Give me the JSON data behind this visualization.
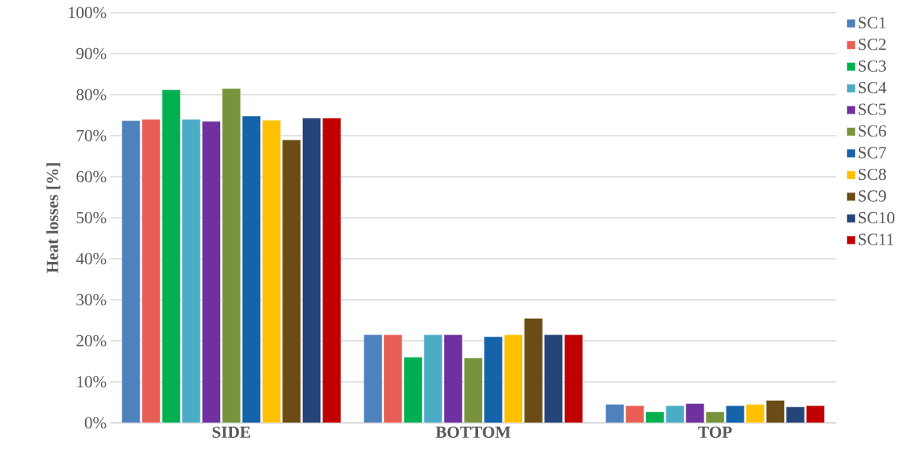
{
  "chart_data": {
    "type": "bar",
    "ylabel": "Heat losses [%]",
    "categories": [
      "SIDE",
      "BOTTOM",
      "TOP"
    ],
    "series": [
      {
        "name": "SC1",
        "color": "#4f81bd",
        "values": [
          73.7,
          21.5,
          4.5
        ]
      },
      {
        "name": "SC2",
        "color": "#e95e54",
        "values": [
          74.0,
          21.5,
          4.2
        ]
      },
      {
        "name": "SC3",
        "color": "#00b050",
        "values": [
          81.2,
          16.0,
          2.7
        ]
      },
      {
        "name": "SC4",
        "color": "#4bacc6",
        "values": [
          74.0,
          21.5,
          4.2
        ]
      },
      {
        "name": "SC5",
        "color": "#7030a0",
        "values": [
          73.5,
          21.5,
          4.7
        ]
      },
      {
        "name": "SC6",
        "color": "#77933c",
        "values": [
          81.5,
          15.8,
          2.7
        ]
      },
      {
        "name": "SC7",
        "color": "#1563a8",
        "values": [
          74.8,
          21.0,
          4.2
        ]
      },
      {
        "name": "SC8",
        "color": "#ffc000",
        "values": [
          73.8,
          21.5,
          4.5
        ]
      },
      {
        "name": "SC9",
        "color": "#6b4c14",
        "values": [
          69.0,
          25.5,
          5.5
        ]
      },
      {
        "name": "SC10",
        "color": "#254479",
        "values": [
          74.3,
          21.5,
          3.9
        ]
      },
      {
        "name": "SC11",
        "color": "#c00000",
        "values": [
          74.3,
          21.5,
          4.2
        ]
      }
    ],
    "ylim": [
      0,
      100
    ],
    "yticks": [
      {
        "value": 0,
        "label": "0%"
      },
      {
        "value": 10,
        "label": "10%"
      },
      {
        "value": 20,
        "label": "20%"
      },
      {
        "value": 30,
        "label": "30%"
      },
      {
        "value": 40,
        "label": "40%"
      },
      {
        "value": 50,
        "label": "50%"
      },
      {
        "value": 60,
        "label": "60%"
      },
      {
        "value": 70,
        "label": "70%"
      },
      {
        "value": 80,
        "label": "80%"
      },
      {
        "value": 90,
        "label": "90%"
      },
      {
        "value": 100,
        "label": "100%"
      }
    ],
    "grid": "y",
    "legend": "right"
  }
}
